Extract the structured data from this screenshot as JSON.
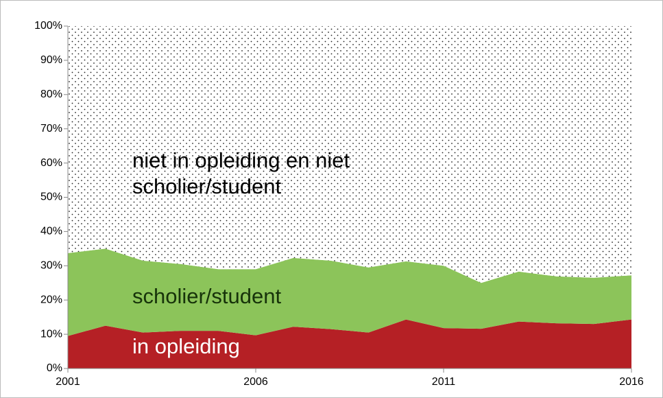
{
  "chart_data": {
    "type": "stacked-area",
    "x": [
      2001,
      2002,
      2003,
      2004,
      2005,
      2006,
      2007,
      2008,
      2009,
      2010,
      2011,
      2012,
      2013,
      2014,
      2015,
      2016
    ],
    "xlim": [
      2001,
      2016
    ],
    "xticks": [
      2001,
      2006,
      2011,
      2016
    ],
    "ylim": [
      0,
      100
    ],
    "yticks": [
      {
        "value": 0,
        "label": "0%"
      },
      {
        "value": 10,
        "label": "10%"
      },
      {
        "value": 20,
        "label": "20%"
      },
      {
        "value": 30,
        "label": "30%"
      },
      {
        "value": 40,
        "label": "40%"
      },
      {
        "value": 50,
        "label": "50%"
      },
      {
        "value": 60,
        "label": "60%"
      },
      {
        "value": 70,
        "label": "70%"
      },
      {
        "value": 80,
        "label": "80%"
      },
      {
        "value": 90,
        "label": "90%"
      },
      {
        "value": 100,
        "label": "100%"
      }
    ],
    "series": [
      {
        "name": "in opleiding",
        "color": "#b52025",
        "values": [
          9.5,
          12.5,
          10.5,
          11,
          11,
          9.7,
          12.2,
          11.5,
          10.5,
          14.3,
          11.8,
          11.6,
          13.7,
          13.2,
          13,
          14.3
        ]
      },
      {
        "name": "scholier/student",
        "color": "#8cc45a",
        "values": [
          24.2,
          22.5,
          21,
          19.5,
          18,
          19.3,
          20.1,
          20,
          19,
          17,
          18.2,
          13.4,
          14.6,
          13.7,
          13.5,
          12.9
        ]
      },
      {
        "name": "niet in opleiding en niet scholier/student",
        "color": "dots",
        "values": [
          66.3,
          65,
          68.5,
          69.5,
          71,
          71,
          67.7,
          68.5,
          70.5,
          68.7,
          70,
          75,
          71.7,
          73.1,
          73.5,
          72.8
        ]
      }
    ]
  }
}
